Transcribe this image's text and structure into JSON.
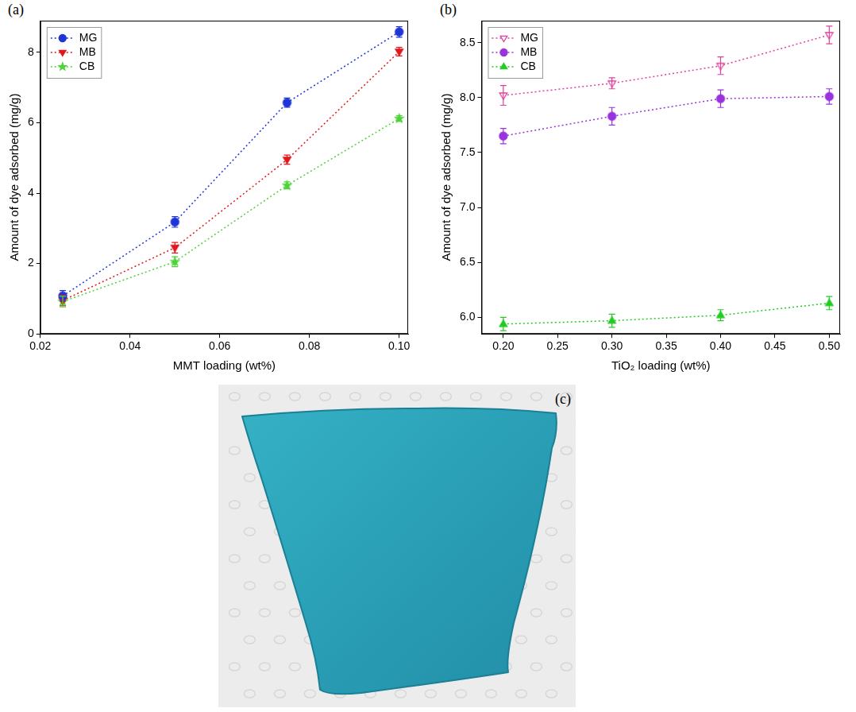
{
  "chart_data": [
    {
      "type": "line",
      "title": "(a)",
      "x_label": "MMT loading (wt%)",
      "y_label": "Amount of dye adsorbed (mg/g)",
      "x": [
        0.025,
        0.05,
        0.075,
        0.1
      ],
      "series": [
        {
          "name": "MG",
          "color": "#1f35d6",
          "marker": "circle",
          "line_style": "dotted",
          "values": [
            1.08,
            3.18,
            6.57,
            8.58
          ],
          "errors": [
            0.15,
            0.15,
            0.13,
            0.15
          ]
        },
        {
          "name": "MB",
          "color": "#e3161c",
          "marker": "triangle-down",
          "line_style": "dotted",
          "values": [
            0.95,
            2.45,
            4.95,
            8.02
          ],
          "errors": [
            0.15,
            0.15,
            0.13,
            0.12
          ]
        },
        {
          "name": "CB",
          "color": "#4fd23a",
          "marker": "star",
          "line_style": "dotted",
          "values": [
            0.92,
            2.05,
            4.22,
            6.12
          ],
          "errors": [
            0.15,
            0.14,
            0.1,
            0.08
          ]
        }
      ],
      "xlim": [
        0.02,
        0.102
      ],
      "xticks": [
        0.02,
        0.04,
        0.06,
        0.08,
        {
          "value": 0.1,
          "label": "0.10"
        }
      ],
      "ylim": [
        0,
        8.9
      ],
      "yticks": [
        0,
        2,
        4,
        6,
        8
      ],
      "grid": false,
      "legend": "upper left"
    },
    {
      "type": "line",
      "title": "(b)",
      "x_label": "TiO₂ loading (wt%)",
      "y_label": "Amount of dye adsorbed (mg/g)",
      "x": [
        0.2,
        0.3,
        0.4,
        0.5
      ],
      "series": [
        {
          "name": "MG",
          "color": "#e0409a",
          "marker": "triangle-down-open",
          "line_style": "dotted",
          "values": [
            8.02,
            8.13,
            8.29,
            8.57
          ],
          "errors": [
            0.09,
            0.05,
            0.08,
            0.08
          ]
        },
        {
          "name": "MB",
          "color": "#9933dd",
          "marker": "circle",
          "line_style": "dotted",
          "values": [
            7.65,
            7.83,
            7.99,
            8.01
          ],
          "errors": [
            0.07,
            0.08,
            0.08,
            0.07
          ]
        },
        {
          "name": "CB",
          "color": "#22cc22",
          "marker": "triangle-up",
          "line_style": "dotted",
          "values": [
            5.94,
            5.97,
            6.02,
            6.13
          ],
          "errors": [
            0.06,
            0.06,
            0.05,
            0.06
          ]
        }
      ],
      "xlim": [
        0.18,
        0.51
      ],
      "xticks": [
        {
          "value": 0.2,
          "label": "0.20"
        },
        0.25,
        {
          "value": 0.3,
          "label": "0.30"
        },
        0.35,
        {
          "value": 0.4,
          "label": "0.40"
        },
        0.45,
        {
          "value": 0.5,
          "label": "0.50"
        }
      ],
      "ylim": [
        5.85,
        8.7
      ],
      "yticks": [
        {
          "value": 6,
          "label": "6.0"
        },
        6.5,
        {
          "value": 7,
          "label": "7.0"
        },
        7.5,
        {
          "value": 8,
          "label": "8.0"
        },
        8.5
      ],
      "grid": false,
      "legend": "upper left"
    }
  ],
  "panel_c": {
    "label": "(c)"
  }
}
